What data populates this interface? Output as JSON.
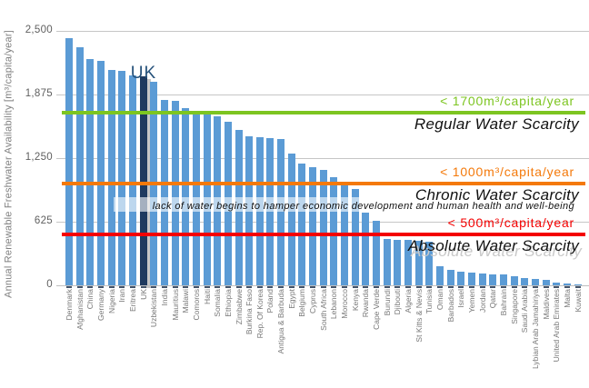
{
  "chart_data": {
    "type": "bar",
    "title": "",
    "xlabel": "",
    "ylabel": "Annual Renewable Freshwater Availability [m³/capita/year]",
    "ylim": [
      0,
      2500
    ],
    "yticks": [
      0,
      625,
      1250,
      1875,
      2500
    ],
    "ytick_labels": [
      "0",
      "625",
      "1,250",
      "1,875",
      "2,500"
    ],
    "grid": true,
    "legend": "none",
    "bar_color": "#5b9bd5",
    "categories": [
      "Denmark",
      "Afghanistan",
      "China",
      "Germany",
      "Nigeria",
      "Iran",
      "Eritrea",
      "UK",
      "Uzbekistan",
      "India",
      "Mauritius",
      "Malawi",
      "Comoros",
      "Haiti",
      "Somalia",
      "Ethiopia",
      "Zimbabwe",
      "Burkina Faso",
      "Rep. Of Korea",
      "Poland",
      "Antigua & Barbuda",
      "Egypt",
      "Belgium",
      "Cyprus",
      "South Africa",
      "Lebanon",
      "Morocco",
      "Kenya",
      "Rwanda",
      "Cape Verde",
      "Burundi",
      "Djibouti",
      "Algeria",
      "St Kitts & Nevis",
      "Tunisia",
      "Oman",
      "Barbados",
      "Israel",
      "Yemen",
      "Jordan",
      "Qatar",
      "Bahrain",
      "Singapore",
      "Saudi Arabia",
      "Lybian Arab Jamahiriya",
      "Maldives",
      "United Arab Emirates",
      "Malta",
      "Kuwait"
    ],
    "values": [
      2425,
      2335,
      2225,
      2205,
      2120,
      2105,
      2060,
      2050,
      2000,
      1825,
      1815,
      1740,
      1700,
      1690,
      1665,
      1610,
      1530,
      1465,
      1455,
      1445,
      1435,
      1295,
      1200,
      1165,
      1135,
      1060,
      995,
      950,
      710,
      635,
      455,
      450,
      445,
      435,
      430,
      190,
      155,
      130,
      125,
      112,
      110,
      105,
      85,
      70,
      62,
      56,
      30,
      15,
      6
    ],
    "highlight": {
      "category": "UK",
      "label": "UK",
      "bar_color": "#1f3a5f",
      "shadow_color": "#c6c6c6",
      "label_color": "#25517a"
    },
    "thresholds": [
      {
        "value": 1700,
        "line_color": "#7dc521",
        "label": "< 1700m³/capita/year",
        "label_color": "#7dc521",
        "zone_label": "Regular Water Scarcity"
      },
      {
        "value": 1000,
        "line_color": "#f4790a",
        "label": "< 1000m³/capita/year",
        "label_color": "#f4790a",
        "zone_label": "Chronic Water Scarcity",
        "zone_note": "lack of water begins to hamper economic development and human health and well-being"
      },
      {
        "value": 500,
        "line_color": "#f40000",
        "label": "< 500m³/capita/year",
        "label_color": "#f40000",
        "zone_label": "Absolute Water Scarcity",
        "zone_label_shadow": true
      }
    ]
  }
}
